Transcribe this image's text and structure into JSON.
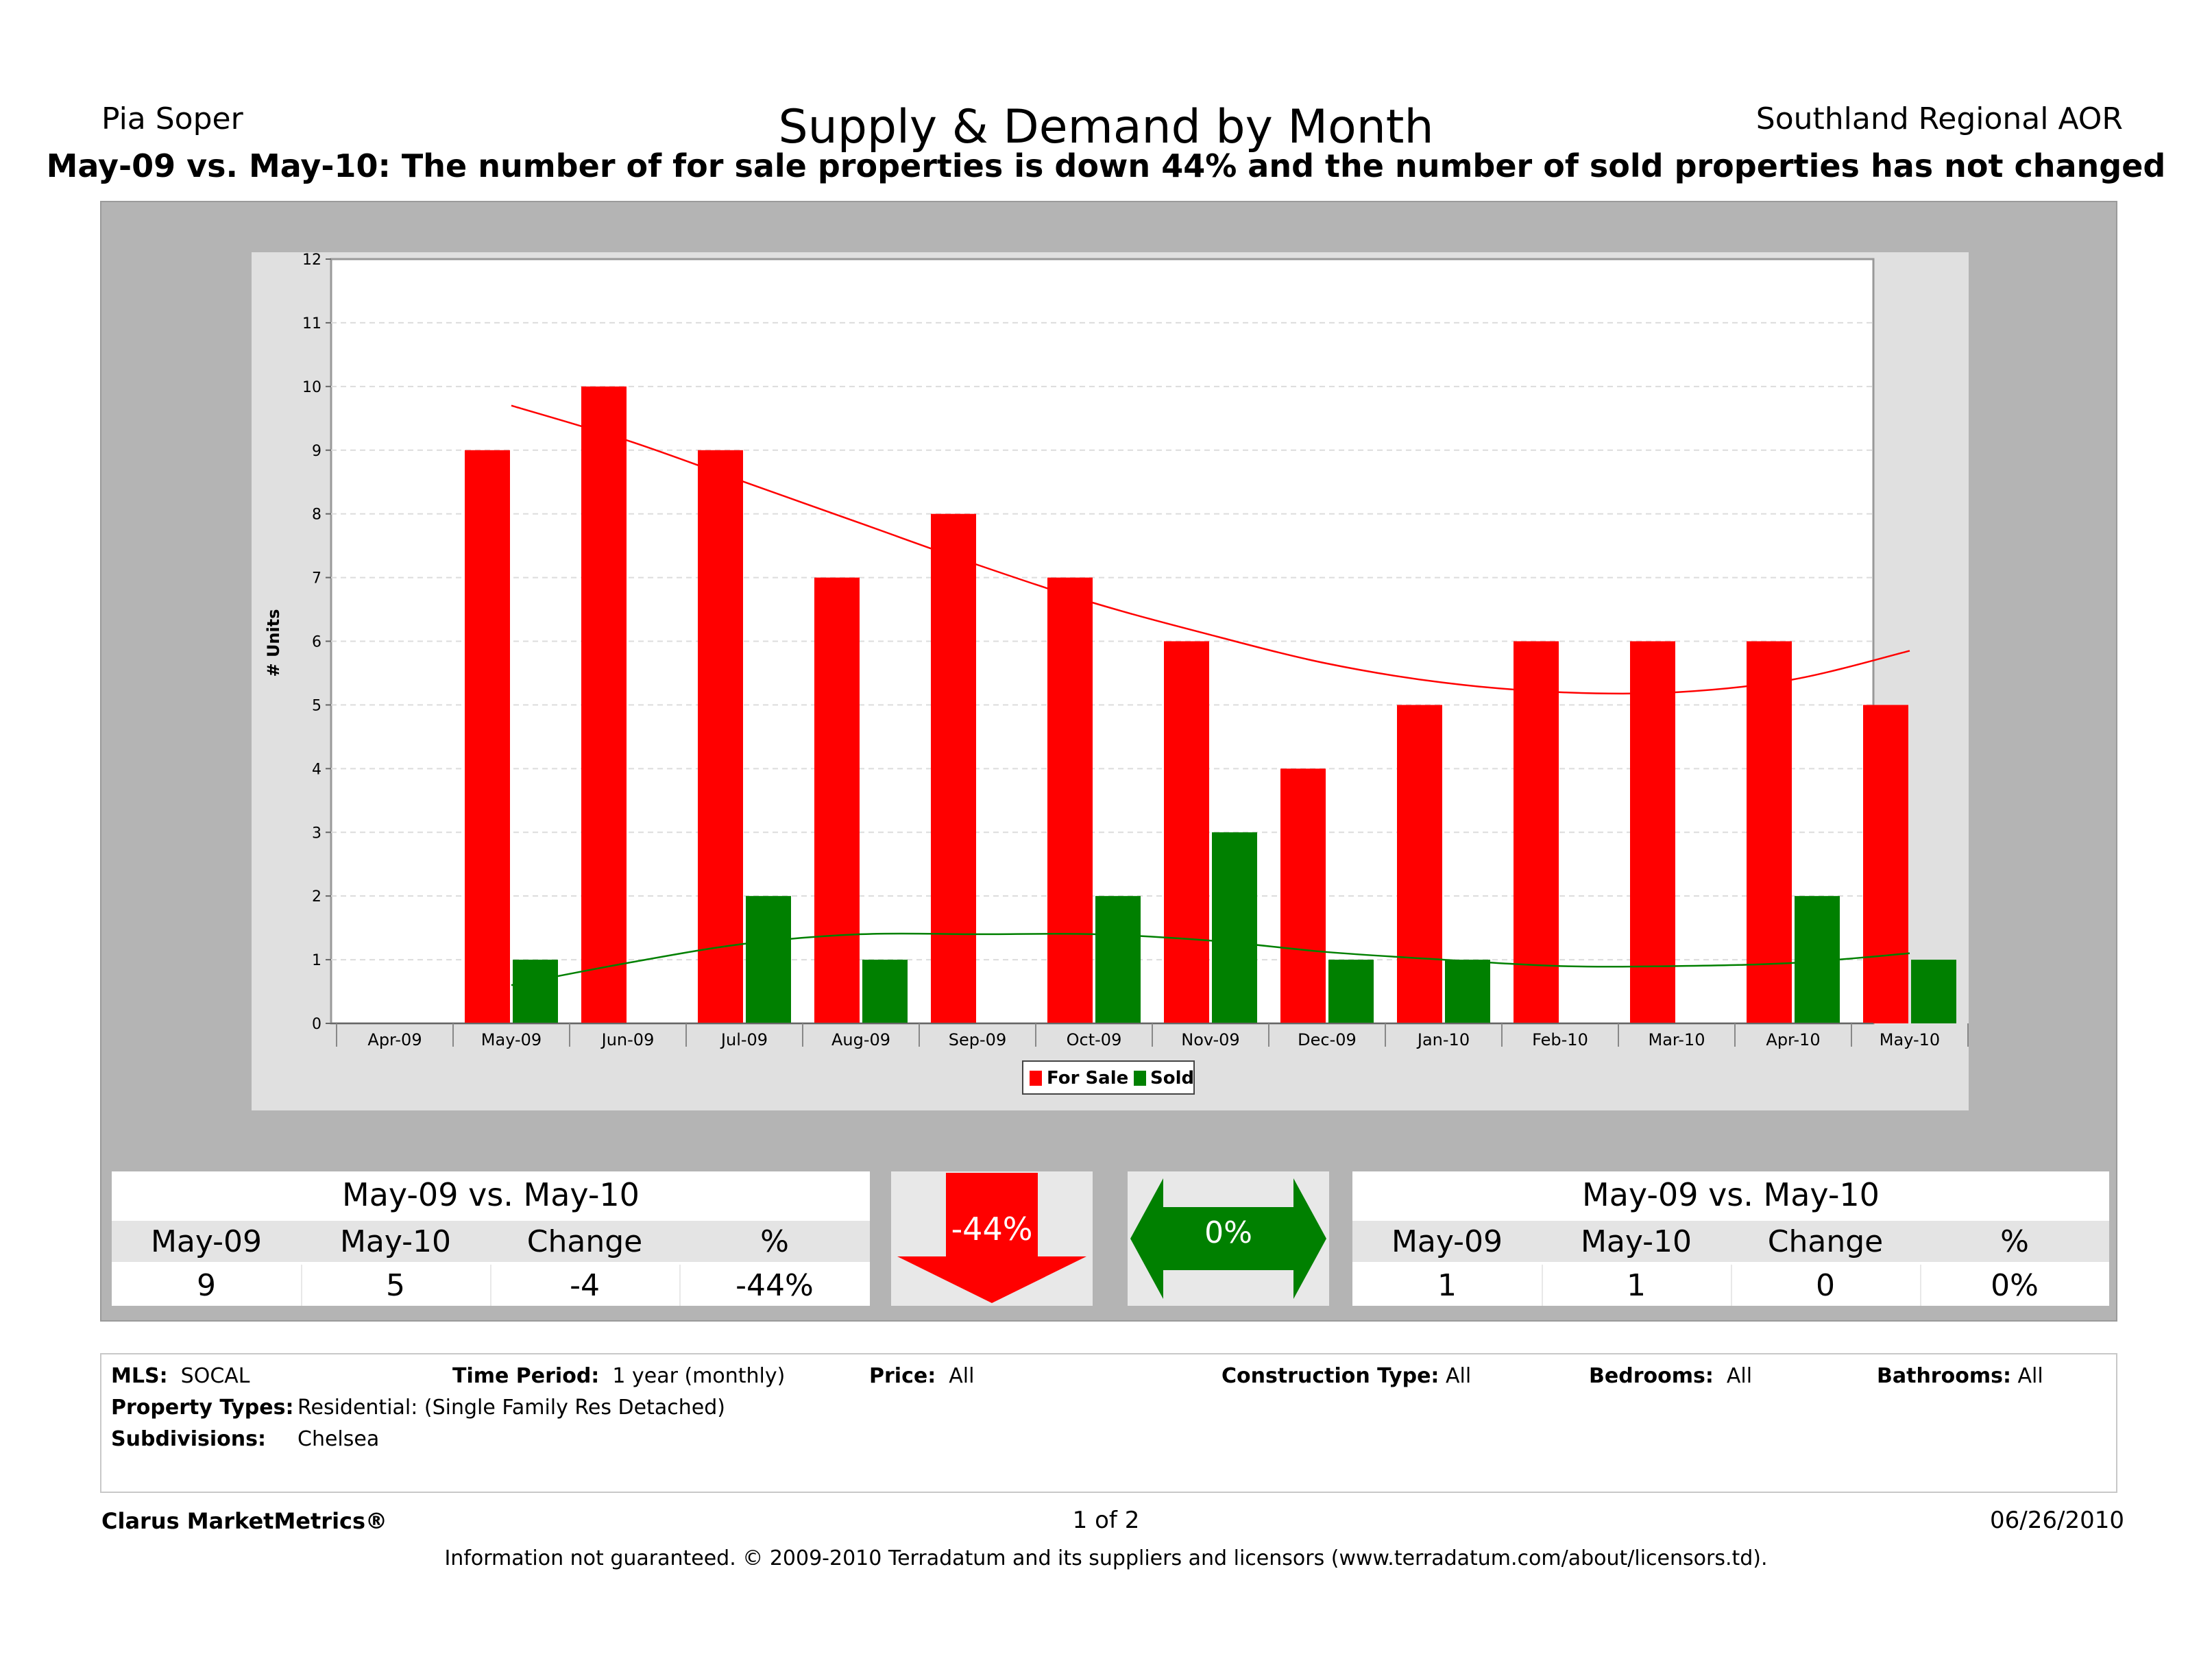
{
  "header": {
    "agent": "Pia Soper",
    "title": "Supply & Demand by Month",
    "association": "Southland Regional AOR",
    "subtitle": "May-09 vs. May-10:  The number of for sale properties is down 44% and the number of sold properties has not changed"
  },
  "chart_data": {
    "type": "bar",
    "categories": [
      "Apr-09",
      "May-09",
      "Jun-09",
      "Jul-09",
      "Aug-09",
      "Sep-09",
      "Oct-09",
      "Nov-09",
      "Dec-09",
      "Jan-10",
      "Feb-10",
      "Mar-10",
      "Apr-10",
      "May-10"
    ],
    "series": [
      {
        "name": "For Sale",
        "color": "#ff0000",
        "values": [
          null,
          9,
          10,
          9,
          7,
          8,
          7,
          6,
          4,
          5,
          6,
          6,
          6,
          5
        ]
      },
      {
        "name": "Sold",
        "color": "#008000",
        "values": [
          null,
          1,
          0,
          2,
          1,
          0,
          2,
          3,
          1,
          1,
          0,
          0,
          2,
          1
        ]
      }
    ],
    "trendlines": [
      {
        "series": "For Sale",
        "color": "#ff0000",
        "values": [
          null,
          9.7,
          9.15,
          8.5,
          7.85,
          7.2,
          6.6,
          6.1,
          5.65,
          5.35,
          5.2,
          5.2,
          5.4,
          5.85
        ]
      },
      {
        "series": "Sold",
        "color": "#008000",
        "values": [
          null,
          0.6,
          0.95,
          1.25,
          1.4,
          1.4,
          1.4,
          1.3,
          1.12,
          1.0,
          0.9,
          0.9,
          0.95,
          1.1
        ]
      }
    ],
    "ylabel": "# Units",
    "ylim": [
      0,
      12
    ],
    "yticks": [
      0,
      1,
      2,
      3,
      4,
      5,
      6,
      7,
      8,
      9,
      10,
      11,
      12
    ],
    "grid": true,
    "legend": "bottom-center"
  },
  "for_sale_table": {
    "title": "May-09 vs. May-10",
    "headers": [
      "May-09",
      "May-10",
      "Change",
      "%"
    ],
    "values": [
      "9",
      "5",
      "-4",
      "-44%"
    ],
    "indicator": "-44%",
    "indicator_direction": "down",
    "indicator_color": "#ff0000"
  },
  "sold_table": {
    "title": "May-09 vs. May-10",
    "headers": [
      "May-09",
      "May-10",
      "Change",
      "%"
    ],
    "values": [
      "1",
      "1",
      "0",
      "0%"
    ],
    "indicator": "0%",
    "indicator_direction": "both",
    "indicator_color": "#008000"
  },
  "criteria": {
    "mls_label": "MLS:",
    "mls": "SOCAL",
    "period_label": "Time Period:",
    "period": "1 year (monthly)",
    "price_label": "Price:",
    "price": "All",
    "construction_label": "Construction Type:",
    "construction": "All",
    "bedrooms_label": "Bedrooms:",
    "bedrooms": "All",
    "bathrooms_label": "Bathrooms:",
    "bathrooms": "All",
    "property_types_label": "Property Types:",
    "property_types": "Residential: (Single Family Res Detached)",
    "subdivisions_label": "Subdivisions:",
    "subdivisions": "Chelsea"
  },
  "footer": {
    "brand": "Clarus MarketMetrics®",
    "page": "1 of 2",
    "date": "06/26/2010",
    "disclaimer": "Information not guaranteed.  © 2009-2010 Terradatum and its suppliers and licensors (www.terradatum.com/about/licensors.td)."
  }
}
